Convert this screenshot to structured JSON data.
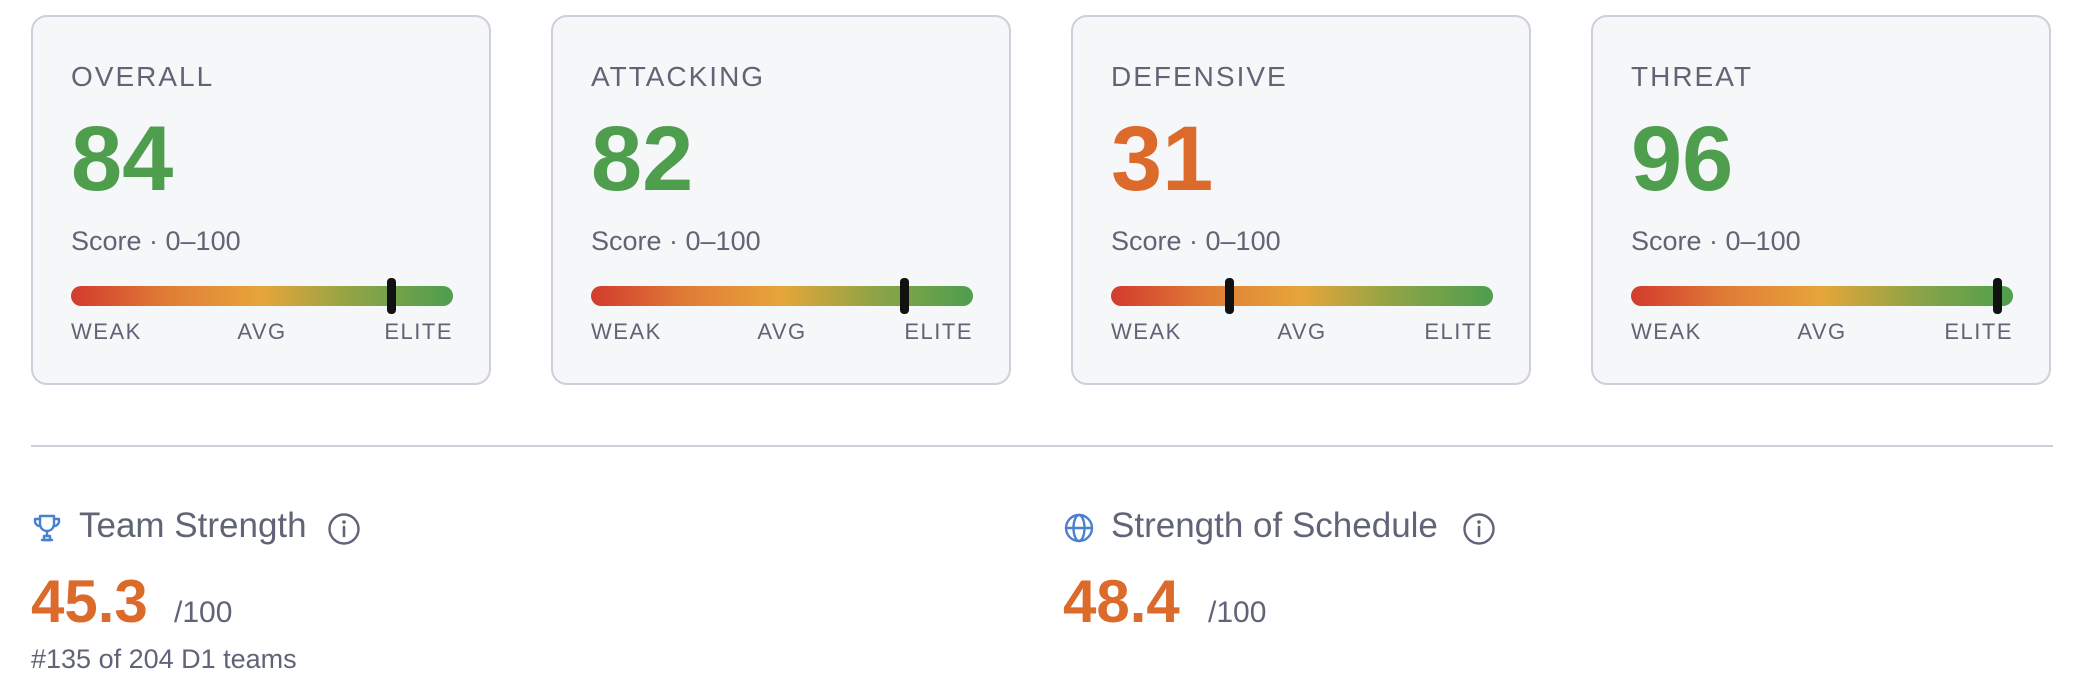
{
  "colors": {
    "good": "#4e9e4e",
    "poor": "#db6a2b",
    "muted": "#5f6576",
    "icon_blue": "#4a80d0"
  },
  "cards": [
    {
      "label": "OVERALL",
      "value": "84",
      "score": 84,
      "status": "good",
      "subtitle": "Score · 0–100",
      "scale": {
        "low": "WEAK",
        "mid": "AVG",
        "high": "ELITE"
      }
    },
    {
      "label": "ATTACKING",
      "value": "82",
      "score": 82,
      "status": "good",
      "subtitle": "Score · 0–100",
      "scale": {
        "low": "WEAK",
        "mid": "AVG",
        "high": "ELITE"
      }
    },
    {
      "label": "DEFENSIVE",
      "value": "31",
      "score": 31,
      "status": "poor",
      "subtitle": "Score · 0–100",
      "scale": {
        "low": "WEAK",
        "mid": "AVG",
        "high": "ELITE"
      }
    },
    {
      "label": "THREAT",
      "value": "96",
      "score": 96,
      "status": "good",
      "subtitle": "Score · 0–100",
      "scale": {
        "low": "WEAK",
        "mid": "AVG",
        "high": "ELITE"
      }
    }
  ],
  "team_strength": {
    "icon": "trophy-icon",
    "title": "Team Strength",
    "info_icon": "info-icon",
    "value": "45.3",
    "max": "/100",
    "rank": "#135 of 204 D1 teams"
  },
  "schedule_strength": {
    "icon": "globe-icon",
    "title": "Strength of Schedule",
    "info_icon": "info-icon",
    "value": "48.4",
    "max": "/100"
  }
}
